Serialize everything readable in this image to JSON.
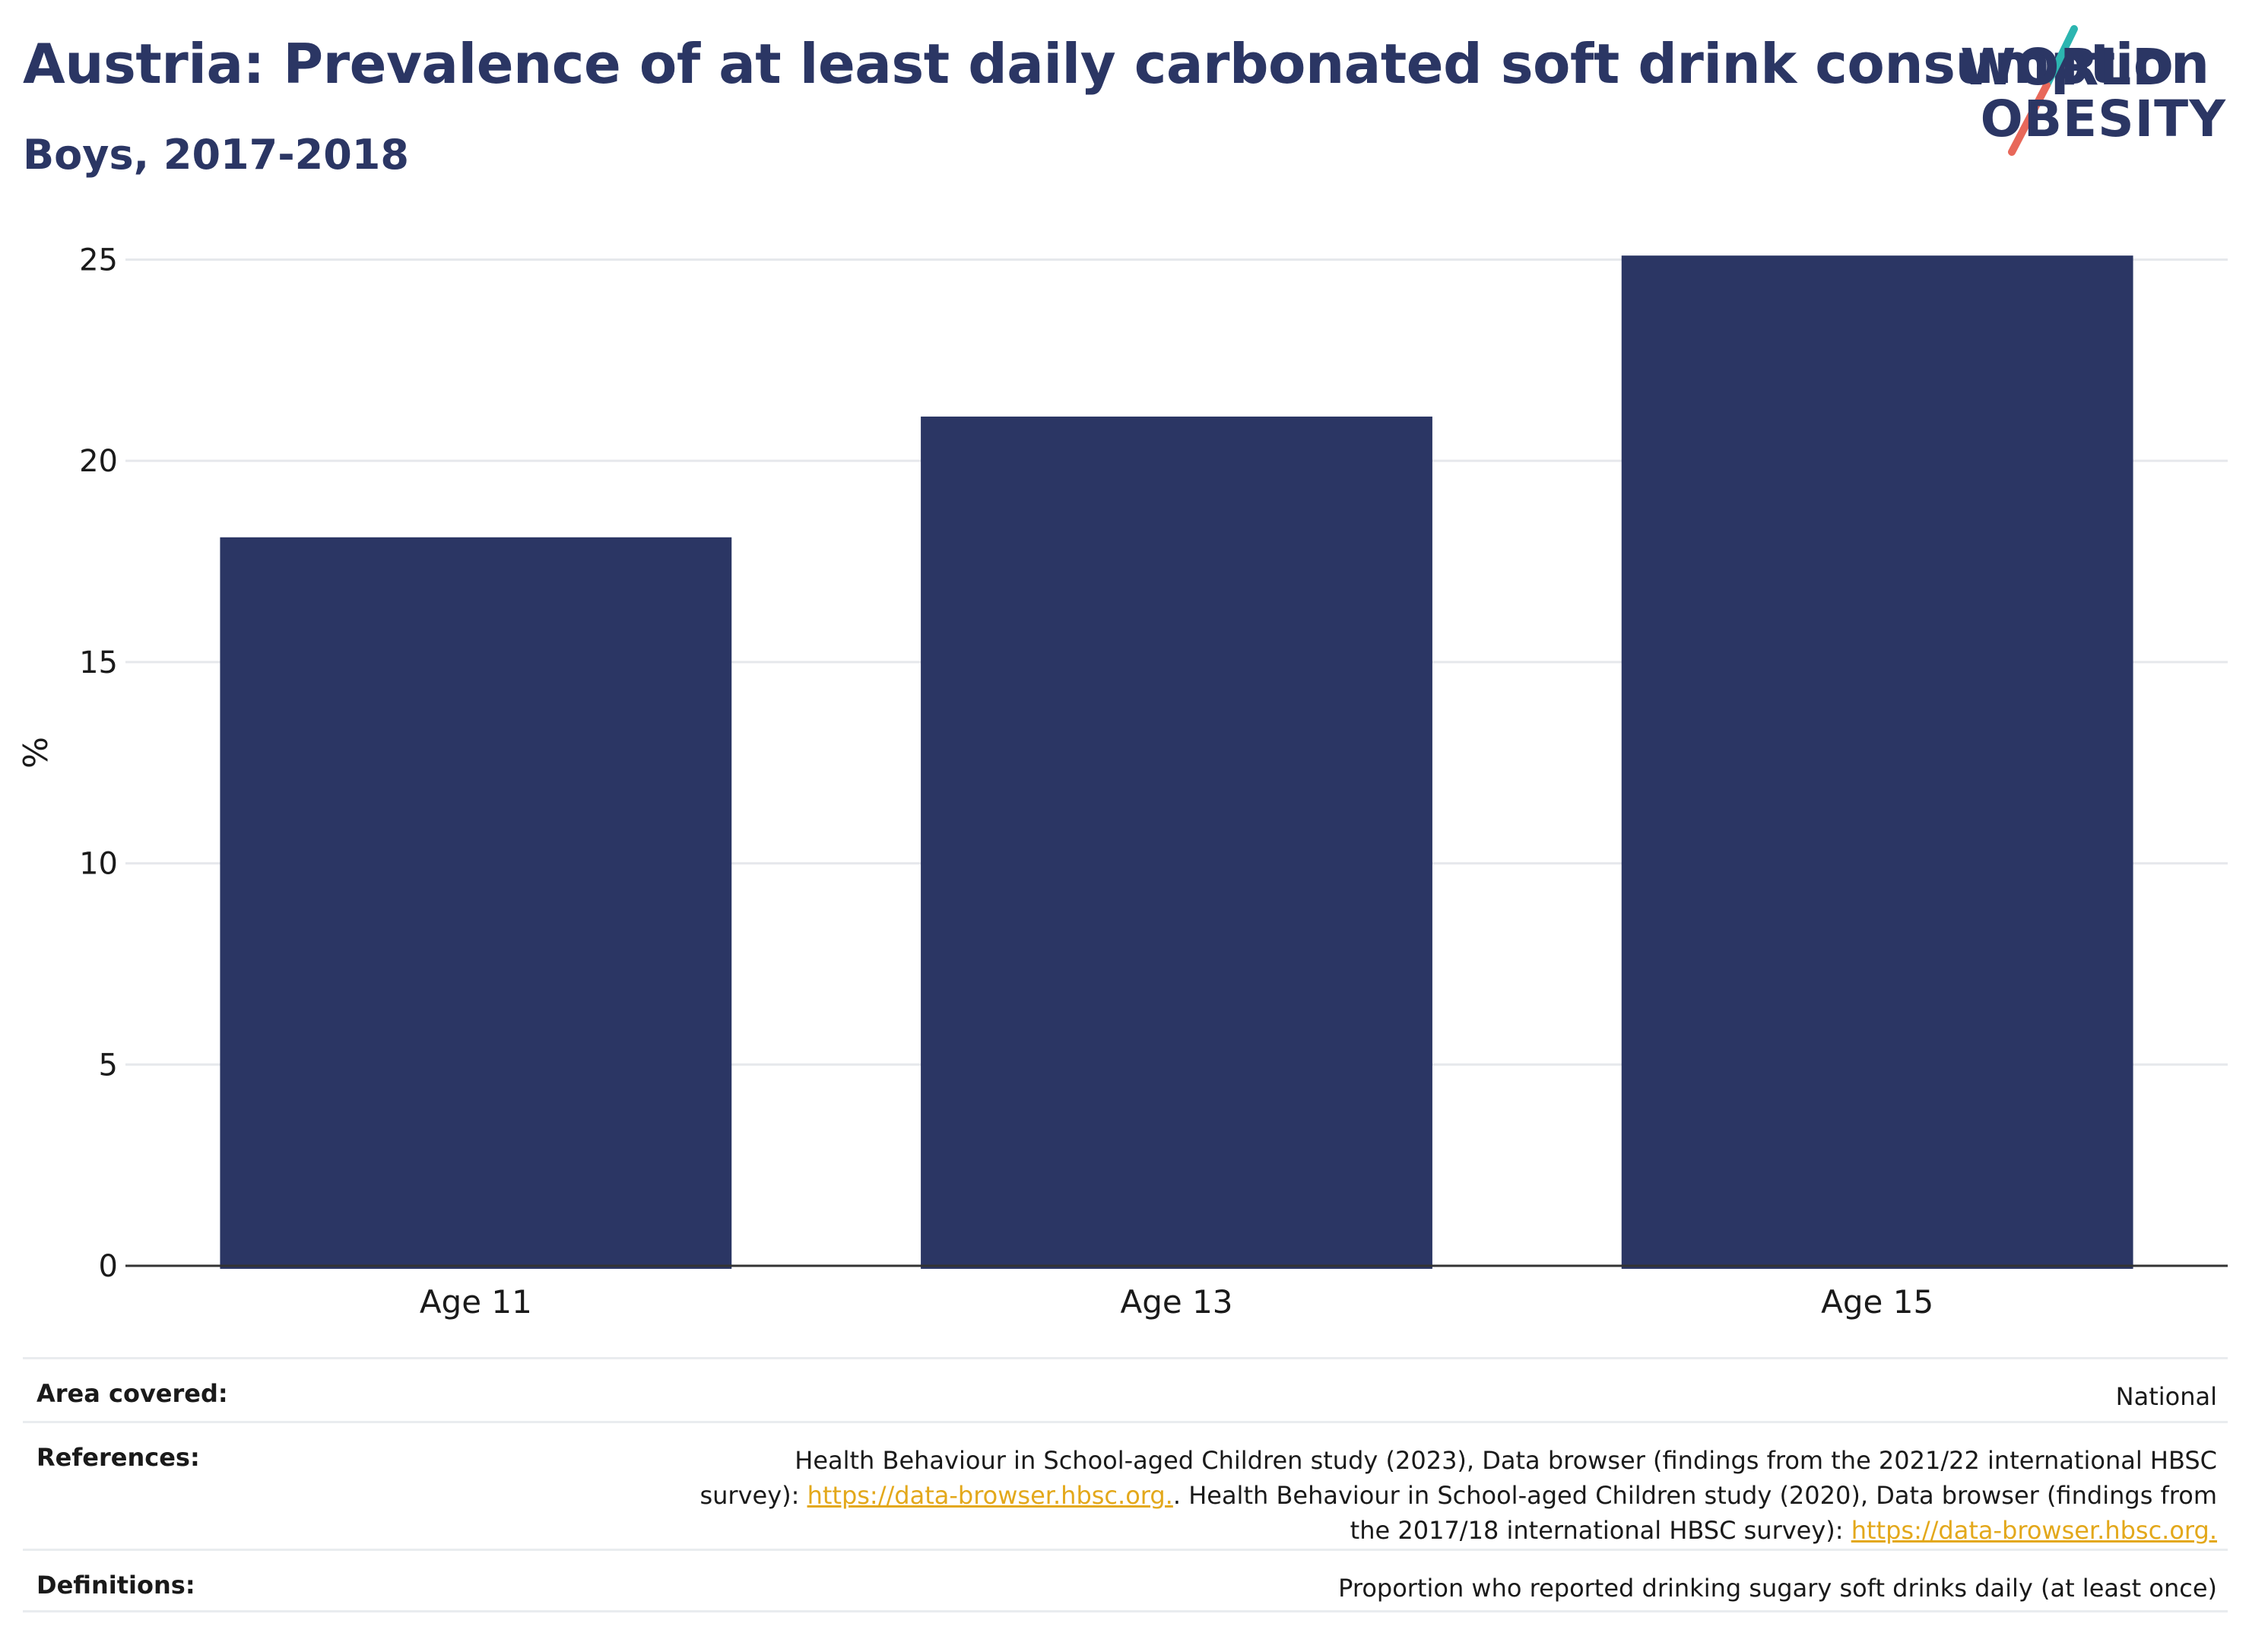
{
  "header": {
    "title": "Austria: Prevalence of at least daily carbonated soft drink consumption",
    "subtitle": "Boys, 2017-2018"
  },
  "logo": {
    "line1": "WORLD",
    "line2": "OBESITY",
    "colors": {
      "text": "#2b3664",
      "teal": "#2cb5b0",
      "coral": "#e8685a"
    }
  },
  "chart_data": {
    "type": "bar",
    "categories": [
      "Age 11",
      "Age 13",
      "Age 15"
    ],
    "values": [
      18.1,
      21.1,
      25.1
    ],
    "ylabel": "%",
    "ylim": [
      0,
      25.5
    ],
    "yticks": [
      0,
      5,
      10,
      15,
      20,
      25
    ],
    "grid": true,
    "bar_color": "#2b3664"
  },
  "meta": {
    "area": {
      "label": "Area covered:",
      "value": "National"
    },
    "references": {
      "label": "References:",
      "part1": "Health Behaviour in School-aged Children study (2023), Data browser (findings from the 2021/22 international HBSC survey): ",
      "link1": "https://data-browser.hbsc.org.",
      "part2": ". Health Behaviour in School-aged Children study (2020), Data browser (findings from the 2017/18 international HBSC survey): ",
      "link2": "https://data-browser.hbsc.org."
    },
    "definitions": {
      "label": "Definitions:",
      "value": "Proportion who reported drinking sugary soft drinks daily (at least once)"
    }
  }
}
